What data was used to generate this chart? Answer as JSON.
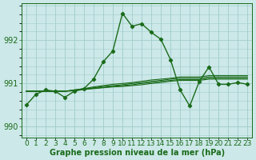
{
  "title": "Graphe pression niveau de la mer (hPa)",
  "background_color": "#cce8e8",
  "grid_color": "#a0cccc",
  "line_color": "#1a6b1a",
  "x_labels": [
    "0",
    "1",
    "2",
    "3",
    "4",
    "5",
    "6",
    "7",
    "8",
    "9",
    "10",
    "11",
    "12",
    "13",
    "14",
    "15",
    "16",
    "17",
    "18",
    "19",
    "20",
    "21",
    "22",
    "23"
  ],
  "ylim": [
    989.75,
    992.85
  ],
  "yticks": [
    990,
    991,
    992
  ],
  "main_series": [
    990.5,
    990.75,
    990.85,
    990.82,
    990.68,
    990.82,
    990.88,
    991.1,
    991.5,
    991.75,
    992.62,
    992.32,
    992.38,
    992.18,
    992.02,
    991.55,
    990.85,
    990.48,
    991.05,
    991.38,
    990.98,
    990.98,
    991.02,
    990.98
  ],
  "flat_series": [
    [
      990.82,
      990.82,
      990.82,
      990.82,
      990.82,
      990.85,
      990.88,
      990.92,
      990.95,
      990.98,
      991.0,
      991.02,
      991.05,
      991.08,
      991.1,
      991.12,
      991.15,
      991.15,
      991.15,
      991.18,
      991.18,
      991.18,
      991.18,
      991.18
    ],
    [
      990.82,
      990.82,
      990.82,
      990.82,
      990.82,
      990.85,
      990.88,
      990.9,
      990.93,
      990.95,
      990.97,
      991.0,
      991.02,
      991.05,
      991.07,
      991.1,
      991.12,
      991.12,
      991.12,
      991.15,
      991.15,
      991.15,
      991.15,
      991.15
    ],
    [
      990.82,
      990.82,
      990.82,
      990.82,
      990.82,
      990.84,
      990.87,
      990.89,
      990.91,
      990.93,
      990.95,
      990.97,
      991.0,
      991.02,
      991.05,
      991.07,
      991.09,
      991.09,
      991.09,
      991.12,
      991.12,
      991.12,
      991.12,
      991.12
    ],
    [
      990.82,
      990.82,
      990.82,
      990.82,
      990.82,
      990.83,
      990.86,
      990.88,
      990.9,
      990.92,
      990.93,
      990.95,
      990.97,
      991.0,
      991.02,
      991.05,
      991.07,
      991.07,
      991.07,
      991.1,
      991.1,
      991.1,
      991.1,
      991.1
    ]
  ],
  "marker": "D",
  "marker_size": 2.2,
  "main_linewidth": 1.0,
  "flat_linewidth": 0.8,
  "xlabel_fontsize": 6.5,
  "ylabel_fontsize": 7,
  "title_fontsize": 7
}
